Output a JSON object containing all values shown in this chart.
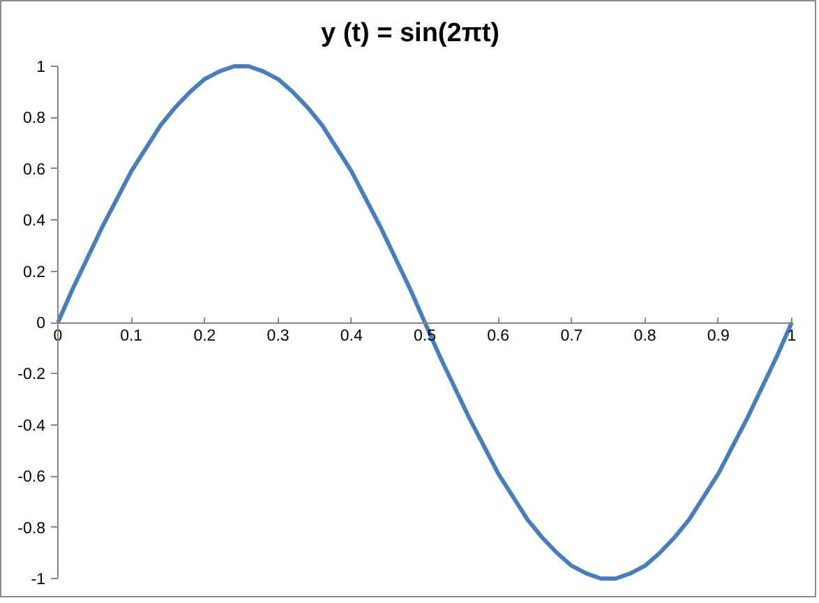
{
  "chart_data": {
    "type": "line",
    "title": "y (t) = sin(2πt)",
    "x": [
      0,
      0.02,
      0.04,
      0.06,
      0.08,
      0.1,
      0.12,
      0.14,
      0.16,
      0.18,
      0.2,
      0.22,
      0.24,
      0.26,
      0.28,
      0.3,
      0.32,
      0.34,
      0.36,
      0.38,
      0.4,
      0.42,
      0.44,
      0.46,
      0.48,
      0.5,
      0.52,
      0.54,
      0.56,
      0.58,
      0.6,
      0.62,
      0.64,
      0.66,
      0.68,
      0.7,
      0.72,
      0.74,
      0.76,
      0.78,
      0.8,
      0.82,
      0.84,
      0.86,
      0.88,
      0.9,
      0.92,
      0.94,
      0.96,
      0.98,
      1
    ],
    "series": [
      {
        "color": "#4a7ebb",
        "values": [
          0,
          0.13,
          0.25,
          0.37,
          0.48,
          0.59,
          0.68,
          0.77,
          0.84,
          0.9,
          0.95,
          0.98,
          1,
          1,
          0.98,
          0.95,
          0.9,
          0.84,
          0.77,
          0.68,
          0.59,
          0.48,
          0.37,
          0.25,
          0.13,
          0,
          -0.13,
          -0.25,
          -0.37,
          -0.48,
          -0.59,
          -0.68,
          -0.77,
          -0.84,
          -0.9,
          -0.95,
          -0.98,
          -1,
          -1,
          -0.98,
          -0.95,
          -0.9,
          -0.84,
          -0.77,
          -0.68,
          -0.59,
          -0.48,
          -0.37,
          -0.25,
          -0.13,
          0
        ]
      }
    ],
    "xlim": [
      0,
      1
    ],
    "ylim": [
      -1,
      1
    ],
    "xticks": [
      0,
      0.1,
      0.2,
      0.3,
      0.4,
      0.5,
      0.6,
      0.7,
      0.8,
      0.9,
      1
    ],
    "yticks": [
      -1,
      -0.8,
      -0.6,
      -0.4,
      -0.2,
      0,
      0.2,
      0.4,
      0.6,
      0.8,
      1
    ],
    "grid": false,
    "marker": "none",
    "line_style": "solid"
  }
}
